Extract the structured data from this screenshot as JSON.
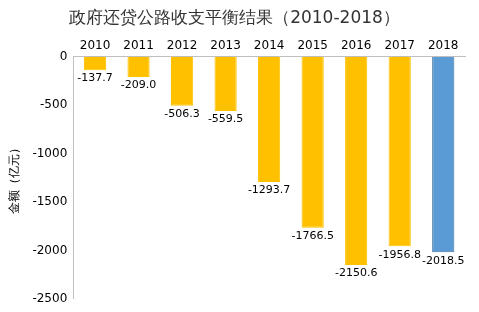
{
  "chart_data": {
    "type": "bar",
    "title": "政府还贷公路收支平衡结果（2010-2018）",
    "y_label": "金额（亿元）",
    "categories": [
      "2010",
      "2011",
      "2012",
      "2013",
      "2014",
      "2015",
      "2016",
      "2017",
      "2018"
    ],
    "values": [
      -137.7,
      -209.0,
      -506.3,
      -559.5,
      -1293.7,
      -1766.5,
      -2150.6,
      -1956.8,
      -2018.5
    ],
    "value_labels": [
      "-137.7",
      "-209.0",
      "-506.3",
      "-559.5",
      "-1293.7",
      "-1766.5",
      "-2150.6",
      "-1956.8",
      "-2018.5"
    ],
    "colors": [
      "#ffc000",
      "#ffc000",
      "#ffc000",
      "#ffc000",
      "#ffc000",
      "#ffc000",
      "#ffc000",
      "#ffc000",
      "#5b9bd5"
    ],
    "ylim": [
      -2500,
      0
    ],
    "yticks": [
      -2500,
      -2000,
      -1500,
      -1000,
      -500,
      0
    ],
    "grid": false,
    "data_labels": true
  }
}
